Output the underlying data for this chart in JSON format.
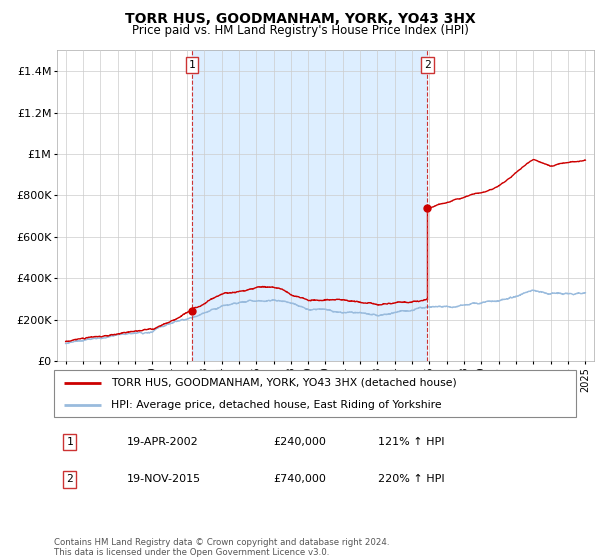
{
  "title": "TORR HUS, GOODMANHAM, YORK, YO43 3HX",
  "subtitle": "Price paid vs. HM Land Registry's House Price Index (HPI)",
  "legend_line1": "TORR HUS, GOODMANHAM, YORK, YO43 3HX (detached house)",
  "legend_line2": "HPI: Average price, detached house, East Riding of Yorkshire",
  "transaction1_date": "19-APR-2002",
  "transaction1_price": "£240,000",
  "transaction1_hpi": "121% ↑ HPI",
  "transaction1_year": 2002.3,
  "transaction1_value": 240000,
  "transaction2_date": "19-NOV-2015",
  "transaction2_price": "£740,000",
  "transaction2_hpi": "220% ↑ HPI",
  "transaction2_year": 2015.88,
  "transaction2_value": 740000,
  "house_color": "#cc0000",
  "hpi_color": "#99bbdd",
  "vline_color": "#cc3333",
  "marker_color": "#cc0000",
  "shade_color": "#ddeeff",
  "background_color": "#ffffff",
  "grid_color": "#cccccc",
  "footer_text": "Contains HM Land Registry data © Crown copyright and database right 2024.\nThis data is licensed under the Open Government Licence v3.0.",
  "ylim": [
    0,
    1500000
  ],
  "yticks": [
    0,
    200000,
    400000,
    600000,
    800000,
    1000000,
    1200000,
    1400000
  ],
  "ytick_labels": [
    "£0",
    "£200K",
    "£400K",
    "£600K",
    "£800K",
    "£1M",
    "£1.2M",
    "£1.4M"
  ],
  "xlim_start": 1994.5,
  "xlim_end": 2025.5
}
